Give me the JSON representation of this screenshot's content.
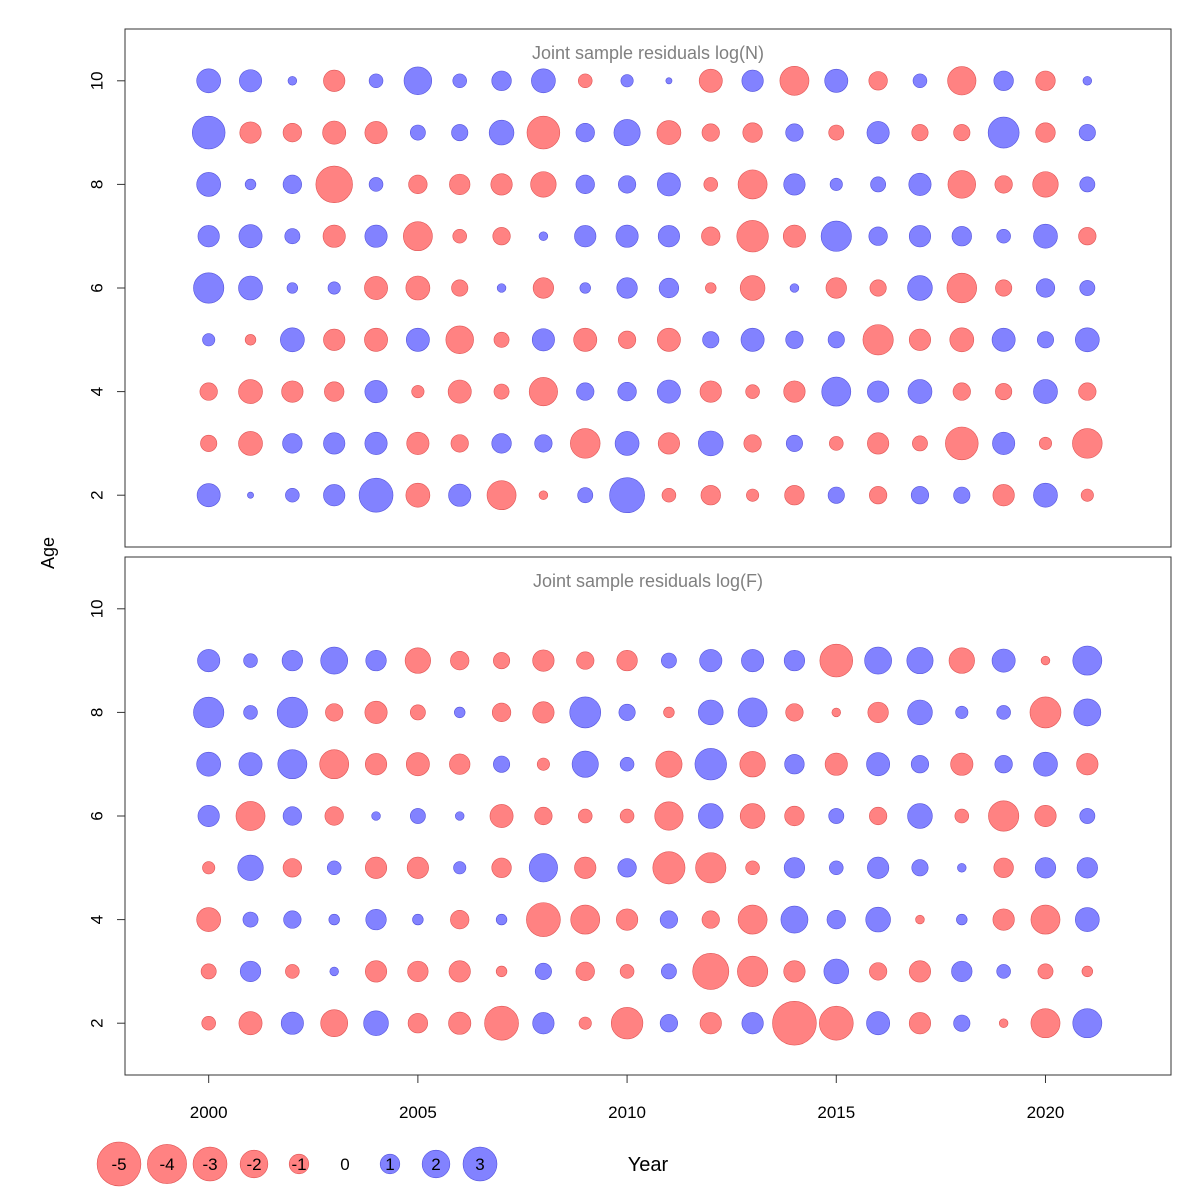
{
  "figure": {
    "ylabel": "Age",
    "xlabel": "Year"
  },
  "chart_data": [
    {
      "type": "scatter",
      "subtype": "bubble",
      "title": "Joint sample residuals log(N)",
      "x": [
        2000,
        2001,
        2002,
        2003,
        2004,
        2005,
        2006,
        2007,
        2008,
        2009,
        2010,
        2011,
        2012,
        2013,
        2014,
        2015,
        2016,
        2017,
        2018,
        2019,
        2020,
        2021
      ],
      "xlim": [
        1998,
        2023
      ],
      "ylim": [
        1,
        11
      ],
      "yticks": [
        2,
        4,
        6,
        8,
        10
      ],
      "ages": [
        2,
        3,
        4,
        5,
        6,
        7,
        8,
        9,
        10
      ],
      "residuals": {
        "2": [
          1.4,
          0.1,
          0.5,
          1.2,
          3.0,
          -1.5,
          1.3,
          -2.2,
          -0.2,
          0.6,
          3.2,
          -0.5,
          -1.0,
          -0.4,
          -1.0,
          0.7,
          -0.8,
          0.8,
          0.7,
          -1.2,
          1.5,
          -0.4
        ],
        "3": [
          -0.7,
          -1.5,
          1.0,
          1.2,
          1.3,
          -1.3,
          -0.8,
          1.0,
          0.8,
          -2.3,
          1.5,
          -1.2,
          1.6,
          -0.8,
          0.7,
          -0.5,
          -1.2,
          -0.6,
          -2.8,
          1.3,
          -0.4,
          -2.3
        ],
        "4": [
          -0.8,
          -1.5,
          -1.2,
          -1.0,
          1.3,
          -0.4,
          -1.4,
          -0.6,
          -2.1,
          0.8,
          0.9,
          1.4,
          -1.2,
          -0.5,
          -1.2,
          2.2,
          1.2,
          1.5,
          -0.8,
          -0.7,
          1.5,
          -0.8
        ],
        "5": [
          0.4,
          -0.3,
          1.5,
          -1.2,
          -1.4,
          1.4,
          -2.0,
          -0.6,
          1.3,
          -1.4,
          -0.8,
          -1.4,
          0.7,
          1.4,
          0.8,
          0.7,
          -2.4,
          -1.2,
          -1.5,
          1.4,
          0.7,
          1.5
        ],
        "6": [
          2.4,
          1.5,
          0.3,
          0.4,
          -1.4,
          -1.5,
          -0.7,
          0.2,
          -1.1,
          0.3,
          1.1,
          1.0,
          -0.3,
          -1.6,
          0.2,
          -1.1,
          -0.7,
          1.6,
          -2.3,
          -0.7,
          0.9,
          0.6
        ],
        "7": [
          1.2,
          1.4,
          0.6,
          -1.3,
          1.3,
          -2.2,
          -0.5,
          -0.8,
          0.2,
          1.2,
          1.3,
          1.2,
          -0.9,
          -2.6,
          -1.3,
          2.4,
          0.9,
          1.2,
          1.0,
          0.5,
          1.5,
          -0.8
        ],
        "8": [
          1.5,
          0.3,
          0.9,
          -3.5,
          0.5,
          -0.9,
          -1.1,
          -1.2,
          -1.7,
          0.9,
          0.8,
          1.4,
          -0.5,
          -2.2,
          1.2,
          0.4,
          0.6,
          1.3,
          -2.0,
          -0.8,
          -1.7,
          0.6
        ],
        "9": [
          2.8,
          -1.2,
          -0.9,
          -1.4,
          -1.3,
          0.6,
          0.7,
          1.6,
          -2.8,
          0.9,
          1.8,
          -1.5,
          -0.8,
          -1.0,
          0.8,
          -0.6,
          1.3,
          -0.7,
          -0.7,
          2.5,
          -1.0,
          0.7
        ],
        "10": [
          1.5,
          1.3,
          0.2,
          -1.2,
          0.5,
          2.0,
          0.5,
          1.0,
          1.5,
          -0.5,
          0.4,
          0.1,
          -1.4,
          1.2,
          -2.2,
          1.4,
          -0.9,
          0.5,
          -2.1,
          1.0,
          -1.0,
          0.2
        ]
      }
    },
    {
      "type": "scatter",
      "subtype": "bubble",
      "title": "Joint sample residuals log(F)",
      "x": [
        2000,
        2001,
        2002,
        2003,
        2004,
        2005,
        2006,
        2007,
        2008,
        2009,
        2010,
        2011,
        2012,
        2013,
        2014,
        2015,
        2016,
        2017,
        2018,
        2019,
        2020,
        2021
      ],
      "xlim": [
        1998,
        2023
      ],
      "ylim": [
        1,
        11
      ],
      "yticks": [
        2,
        4,
        6,
        8,
        10
      ],
      "xticks": [
        2000,
        2005,
        2010,
        2015,
        2020
      ],
      "ages": [
        2,
        3,
        4,
        5,
        6,
        7,
        8,
        9
      ],
      "residuals": {
        "2": [
          -0.5,
          -1.4,
          1.3,
          -1.9,
          1.6,
          -1.0,
          -1.3,
          -3.0,
          1.2,
          -0.4,
          -2.6,
          0.8,
          -1.2,
          1.2,
          -5.0,
          -3.0,
          1.4,
          -1.2,
          0.7,
          -0.2,
          -2.2,
          2.2
        ],
        "3": [
          -0.6,
          1.1,
          -0.5,
          0.2,
          -1.2,
          -1.1,
          -1.2,
          -0.3,
          0.7,
          -0.9,
          -0.5,
          0.6,
          -3.4,
          -2.4,
          -1.2,
          1.6,
          -0.8,
          -1.2,
          1.1,
          0.5,
          -0.6,
          -0.3
        ],
        "4": [
          -1.5,
          0.6,
          0.8,
          0.3,
          1.1,
          0.3,
          -0.9,
          0.3,
          -3.0,
          -2.2,
          -1.2,
          0.8,
          -0.8,
          -2.2,
          1.9,
          0.9,
          1.6,
          -0.2,
          0.3,
          -1.2,
          -2.2,
          1.5
        ],
        "5": [
          -0.4,
          1.7,
          -0.9,
          0.5,
          -1.2,
          -1.2,
          0.4,
          -1.0,
          2.1,
          -1.2,
          0.9,
          -2.7,
          -2.4,
          -0.5,
          1.1,
          0.5,
          1.2,
          0.7,
          0.2,
          -1.0,
          1.1,
          1.1
        ],
        "6": [
          1.2,
          -2.2,
          0.9,
          -0.9,
          0.2,
          0.6,
          0.2,
          -1.4,
          -0.8,
          -0.5,
          -0.5,
          -2.1,
          1.6,
          -1.6,
          -1.0,
          0.6,
          -0.8,
          1.6,
          -0.5,
          -2.4,
          -1.2,
          0.6
        ],
        "7": [
          1.5,
          1.4,
          2.2,
          -2.2,
          -1.2,
          -1.4,
          -1.1,
          0.7,
          -0.4,
          1.8,
          0.5,
          -1.8,
          2.6,
          -1.7,
          1.0,
          -1.3,
          1.4,
          0.8,
          -1.3,
          0.8,
          1.5,
          -1.2
        ],
        "8": [
          2.4,
          0.5,
          2.4,
          -0.8,
          -1.3,
          -0.6,
          0.3,
          -0.9,
          -1.2,
          2.5,
          0.7,
          -0.3,
          1.6,
          2.2,
          -0.8,
          -0.2,
          -1.1,
          1.6,
          0.4,
          0.5,
          -2.5,
          1.9
        ],
        "9": [
          1.3,
          0.5,
          1.1,
          1.9,
          1.1,
          -1.7,
          -0.9,
          -0.7,
          -1.2,
          -0.8,
          -1.1,
          0.6,
          1.3,
          1.3,
          1.1,
          -2.8,
          1.9,
          1.8,
          -1.7,
          1.4,
          -0.2,
          2.2
        ]
      }
    }
  ],
  "legend": {
    "items": [
      "-5",
      "-4",
      "-3",
      "-2",
      "-1",
      "0",
      "1",
      "2",
      "3"
    ],
    "values": [
      -5,
      -4,
      -3,
      -2,
      -1,
      0,
      1,
      2,
      3
    ]
  },
  "colors": {
    "negative": "#ff6666",
    "negative_alpha": 0.82,
    "positive": "#6666ff",
    "positive_alpha": 0.82,
    "frame": "#333333",
    "title": "#808080",
    "text": "#000000"
  }
}
